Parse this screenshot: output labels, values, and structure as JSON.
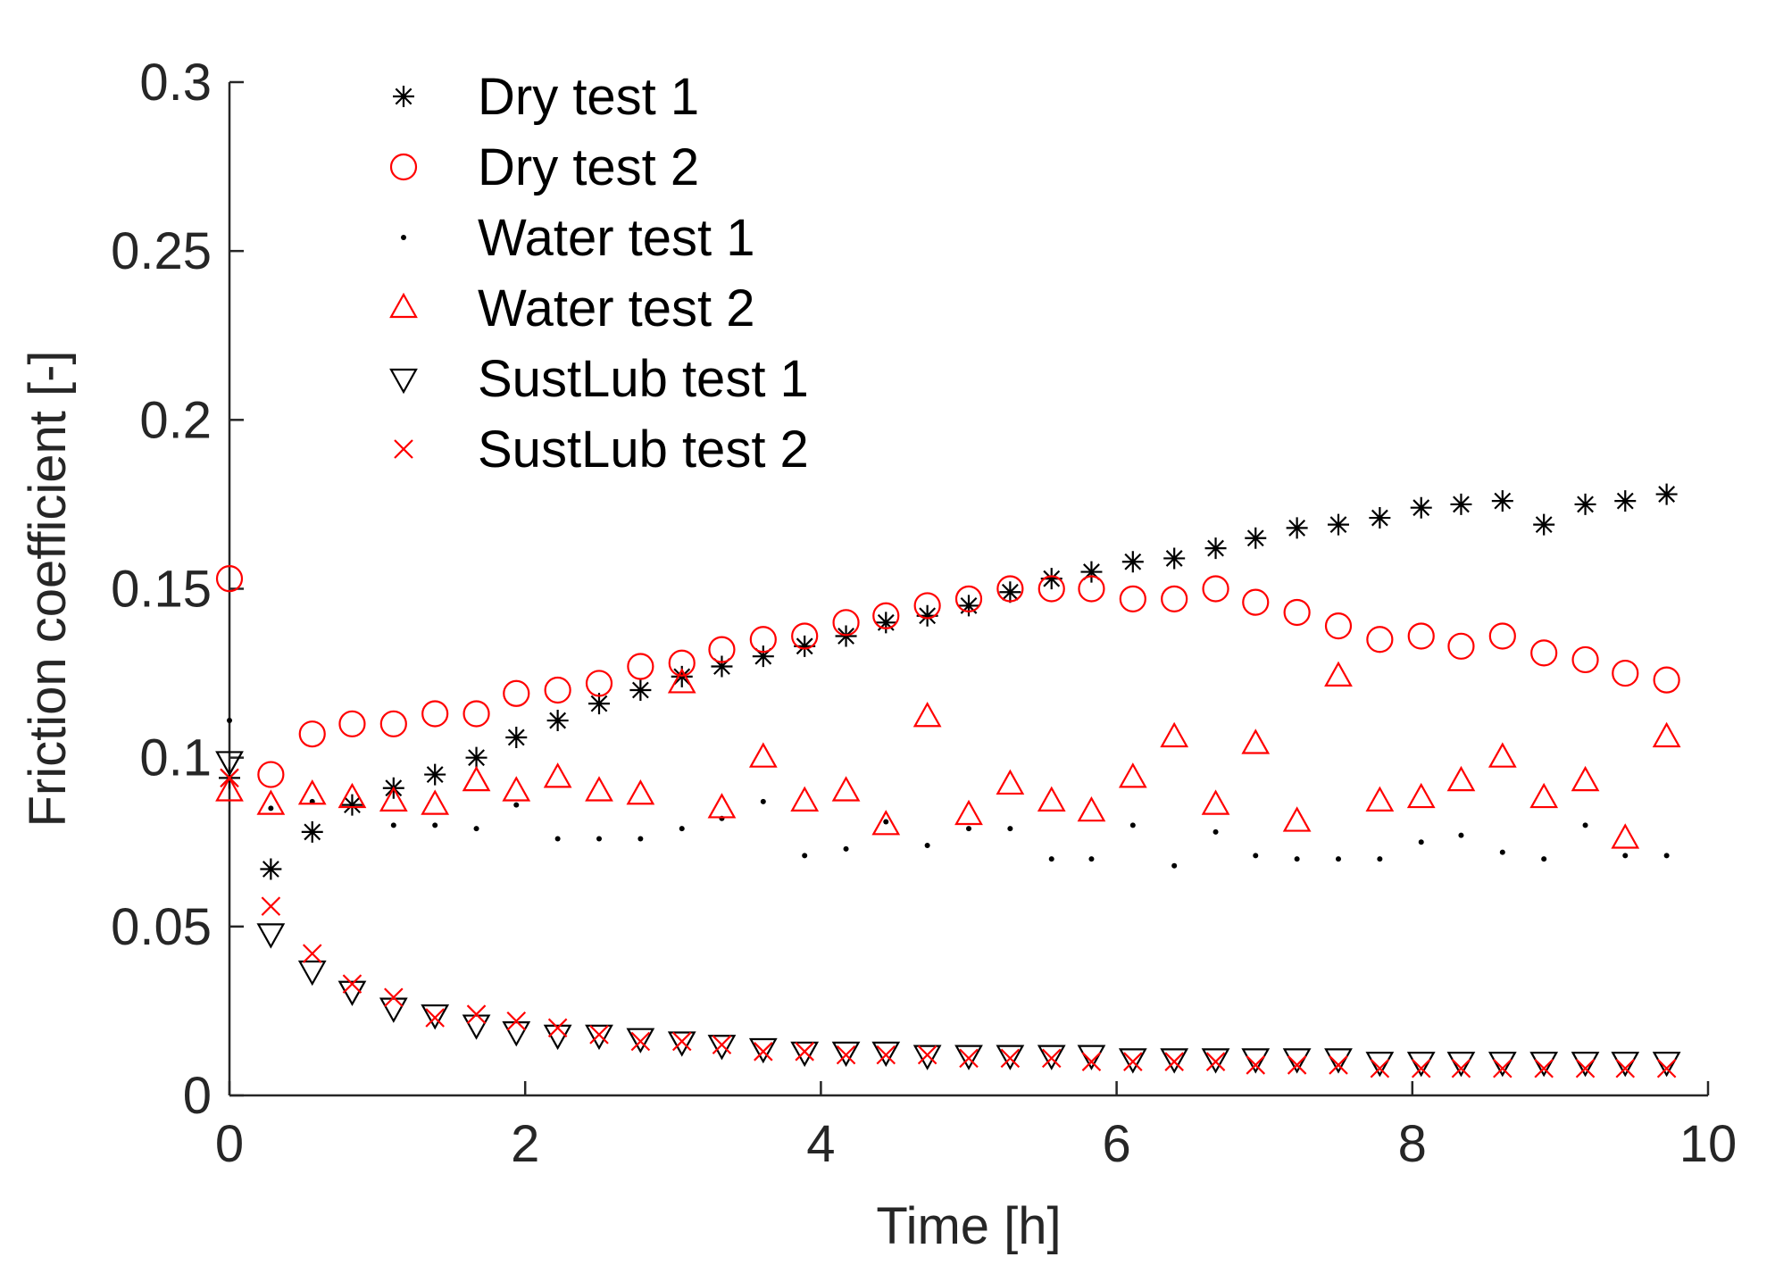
{
  "chart_data": {
    "type": "scatter",
    "title": "",
    "xlabel": "Time [h]",
    "ylabel": "Friction coefficient [-]",
    "xlim": [
      0,
      10
    ],
    "ylim": [
      0,
      0.3
    ],
    "xticks": [
      0,
      2,
      4,
      6,
      8,
      10
    ],
    "yticks": [
      0,
      0.05,
      0.1,
      0.15,
      0.2,
      0.25,
      0.3
    ],
    "xtick_labels": [
      "0",
      "2",
      "4",
      "6",
      "8",
      "10"
    ],
    "ytick_labels": [
      "0",
      "0.05",
      "0.1",
      "0.15",
      "0.2",
      "0.25",
      "0.3"
    ],
    "grid": false,
    "legend_position": "top-left",
    "x": [
      0,
      0.28,
      0.56,
      0.83,
      1.11,
      1.39,
      1.67,
      1.94,
      2.22,
      2.5,
      2.78,
      3.06,
      3.33,
      3.61,
      3.89,
      4.17,
      4.44,
      4.72,
      5.0,
      5.28,
      5.56,
      5.83,
      6.11,
      6.39,
      6.67,
      6.94,
      7.22,
      7.5,
      7.78,
      8.06,
      8.33,
      8.61,
      8.89,
      9.17,
      9.44,
      9.72
    ],
    "series": [
      {
        "name": "Dry test 1",
        "marker": "asterisk",
        "color": "#000000",
        "values": [
          0.094,
          0.067,
          0.078,
          0.086,
          0.091,
          0.095,
          0.1,
          0.106,
          0.111,
          0.116,
          0.12,
          0.124,
          0.127,
          0.13,
          0.133,
          0.136,
          0.14,
          0.142,
          0.145,
          0.149,
          0.153,
          0.155,
          0.158,
          0.159,
          0.162,
          0.165,
          0.168,
          0.169,
          0.171,
          0.174,
          0.175,
          0.176,
          0.169,
          0.175,
          0.176,
          0.178
        ]
      },
      {
        "name": "Dry test 2",
        "marker": "circle",
        "color": "#ff0000",
        "values": [
          0.153,
          0.095,
          0.107,
          0.11,
          0.11,
          0.113,
          0.113,
          0.119,
          0.12,
          0.122,
          0.127,
          0.128,
          0.132,
          0.135,
          0.136,
          0.14,
          0.142,
          0.145,
          0.147,
          0.15,
          0.15,
          0.15,
          0.147,
          0.147,
          0.15,
          0.146,
          0.143,
          0.139,
          0.135,
          0.136,
          0.133,
          0.136,
          0.131,
          0.129,
          0.125,
          0.123
        ]
      },
      {
        "name": "Water test 1",
        "marker": "point",
        "color": "#000000",
        "values": [
          0.111,
          0.085,
          0.087,
          0.086,
          0.08,
          0.08,
          0.079,
          0.086,
          0.076,
          0.076,
          0.076,
          0.079,
          0.082,
          0.087,
          0.071,
          0.073,
          0.081,
          0.074,
          0.079,
          0.079,
          0.07,
          0.07,
          0.08,
          0.068,
          0.078,
          0.071,
          0.07,
          0.07,
          0.07,
          0.075,
          0.077,
          0.072,
          0.07,
          0.08,
          0.071,
          0.071
        ]
      },
      {
        "name": "Water test 2",
        "marker": "triangle-up",
        "color": "#ff0000",
        "values": [
          0.09,
          0.086,
          0.089,
          0.088,
          0.087,
          0.086,
          0.093,
          0.09,
          0.094,
          0.09,
          0.089,
          0.122,
          0.085,
          0.1,
          0.087,
          0.09,
          0.08,
          0.112,
          0.083,
          0.092,
          0.087,
          0.084,
          0.094,
          0.106,
          0.086,
          0.104,
          0.081,
          0.124,
          0.087,
          0.088,
          0.093,
          0.1,
          0.088,
          0.093,
          0.076,
          0.106
        ]
      },
      {
        "name": "SustLub test 1",
        "marker": "triangle-down",
        "color": "#000000",
        "values": [
          0.099,
          0.048,
          0.037,
          0.031,
          0.026,
          0.024,
          0.021,
          0.019,
          0.018,
          0.018,
          0.017,
          0.016,
          0.015,
          0.014,
          0.013,
          0.013,
          0.013,
          0.012,
          0.012,
          0.012,
          0.012,
          0.012,
          0.011,
          0.011,
          0.011,
          0.011,
          0.011,
          0.011,
          0.01,
          0.01,
          0.01,
          0.01,
          0.01,
          0.01,
          0.01,
          0.01
        ]
      },
      {
        "name": "SustLub test 2",
        "marker": "x",
        "color": "#ff0000",
        "values": [
          0.094,
          0.056,
          0.042,
          0.033,
          0.029,
          0.023,
          0.024,
          0.022,
          0.02,
          0.018,
          0.016,
          0.016,
          0.015,
          0.013,
          0.013,
          0.012,
          0.012,
          0.012,
          0.011,
          0.011,
          0.011,
          0.01,
          0.01,
          0.01,
          0.01,
          0.009,
          0.009,
          0.009,
          0.008,
          0.008,
          0.008,
          0.008,
          0.008,
          0.008,
          0.008,
          0.008
        ]
      }
    ]
  }
}
